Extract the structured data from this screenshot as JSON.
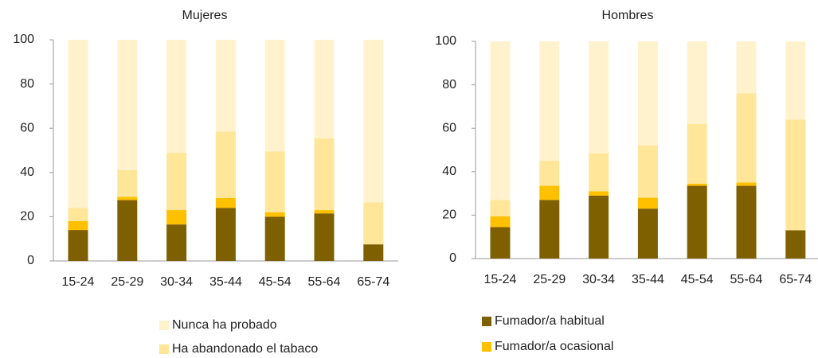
{
  "chart_data": [
    {
      "type": "stacked_bar",
      "title": "Mujeres",
      "categories": [
        "15-24",
        "25-29",
        "30-34",
        "35-44",
        "45-54",
        "55-64",
        "65-74"
      ],
      "series": [
        {
          "name": "Fumador/a habitual",
          "color": "#7f6000",
          "values": [
            14,
            27.5,
            16.5,
            24,
            20,
            21.5,
            7.5
          ]
        },
        {
          "name": "Fumador/a ocasional",
          "color": "#ffc000",
          "values": [
            4,
            1.5,
            6.5,
            4.5,
            2,
            1.5,
            0
          ]
        },
        {
          "name": "Ha abandonado el tabaco",
          "color": "#ffe699",
          "values": [
            6,
            12,
            26,
            30,
            27.5,
            32.5,
            19
          ]
        },
        {
          "name": "Nunca ha probado",
          "color": "#fff2cc",
          "values": [
            76,
            59,
            51,
            41.5,
            50.5,
            44.5,
            73.5
          ]
        }
      ],
      "ylim": [
        0,
        100
      ],
      "yticks": [
        0,
        20,
        40,
        60,
        80,
        100
      ]
    },
    {
      "type": "stacked_bar",
      "title": "Hombres",
      "categories": [
        "15-24",
        "25-29",
        "30-34",
        "35-44",
        "45-54",
        "55-64",
        "65-74"
      ],
      "series": [
        {
          "name": "Fumador/a habitual",
          "color": "#7f6000",
          "values": [
            14.5,
            27,
            29,
            23,
            33.5,
            33.5,
            13
          ]
        },
        {
          "name": "Fumador/a ocasional",
          "color": "#ffc000",
          "values": [
            5,
            6.5,
            2,
            5,
            1,
            1.5,
            0
          ]
        },
        {
          "name": "Ha abandonado el tabaco",
          "color": "#ffe699",
          "values": [
            7.5,
            11.5,
            17.5,
            24,
            27.5,
            41,
            51
          ]
        },
        {
          "name": "Nunca ha probado",
          "color": "#fff2cc",
          "values": [
            73,
            55,
            51.5,
            48,
            38,
            24,
            36
          ]
        }
      ],
      "ylim": [
        0,
        100
      ],
      "yticks": [
        0,
        20,
        40,
        60,
        80,
        100
      ]
    }
  ]
}
